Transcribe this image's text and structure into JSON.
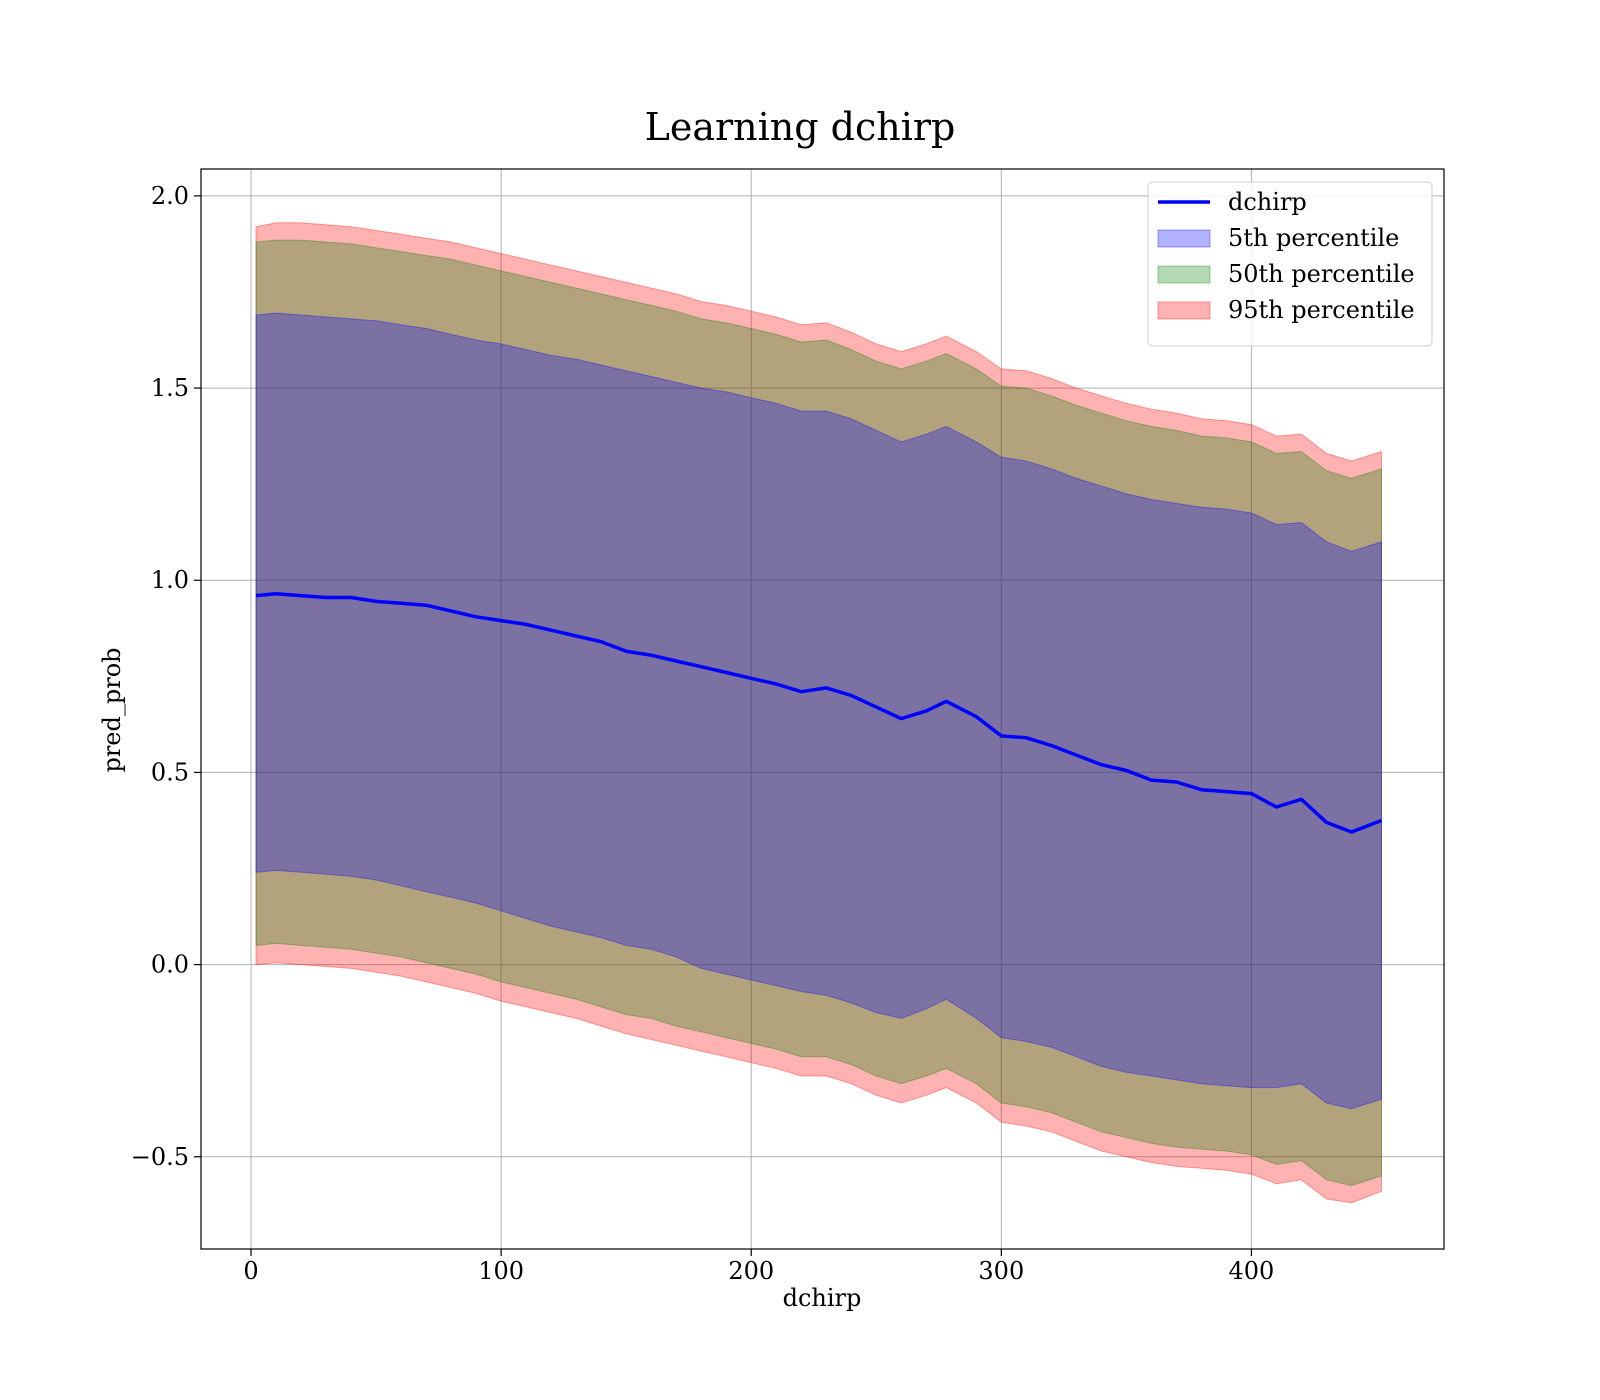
{
  "chart_data": {
    "type": "line",
    "title": "Learning dchirp",
    "xlabel": "dchirp",
    "ylabel": "pred_prob",
    "xlim": [
      -20,
      477
    ],
    "ylim": [
      -0.74,
      2.07
    ],
    "xticks": [
      0,
      100,
      200,
      300,
      400
    ],
    "xtick_labels": [
      "0",
      "100",
      "200",
      "300",
      "400"
    ],
    "yticks": [
      -0.5,
      0.0,
      0.5,
      1.0,
      1.5,
      2.0
    ],
    "ytick_labels": [
      "−0.5",
      "0.0",
      "0.5",
      "1.0",
      "1.5",
      "2.0"
    ],
    "grid": true,
    "legend_position": "top-right",
    "x": [
      2,
      10,
      20,
      30,
      40,
      50,
      60,
      70,
      80,
      90,
      100,
      110,
      120,
      130,
      140,
      150,
      160,
      170,
      180,
      190,
      200,
      210,
      220,
      230,
      240,
      250,
      260,
      270,
      278,
      290,
      300,
      310,
      320,
      330,
      340,
      350,
      360,
      370,
      380,
      390,
      400,
      410,
      420,
      430,
      440,
      452
    ],
    "series": [
      {
        "name": "dchirp",
        "kind": "line",
        "color": "#0000ff",
        "values": [
          0.96,
          0.965,
          0.96,
          0.955,
          0.955,
          0.945,
          0.94,
          0.935,
          0.92,
          0.905,
          0.895,
          0.885,
          0.87,
          0.855,
          0.84,
          0.815,
          0.805,
          0.79,
          0.775,
          0.76,
          0.745,
          0.73,
          0.71,
          0.72,
          0.7,
          0.67,
          0.64,
          0.66,
          0.685,
          0.645,
          0.595,
          0.59,
          0.57,
          0.545,
          0.52,
          0.505,
          0.48,
          0.475,
          0.455,
          0.45,
          0.445,
          0.41,
          0.43,
          0.37,
          0.345,
          0.375
        ]
      },
      {
        "name": "5th percentile",
        "kind": "band",
        "color": "#0000ff",
        "lower": [
          0.24,
          0.245,
          0.24,
          0.235,
          0.23,
          0.22,
          0.205,
          0.19,
          0.175,
          0.16,
          0.14,
          0.12,
          0.1,
          0.085,
          0.07,
          0.05,
          0.04,
          0.02,
          -0.01,
          -0.025,
          -0.04,
          -0.055,
          -0.07,
          -0.08,
          -0.1,
          -0.125,
          -0.14,
          -0.115,
          -0.09,
          -0.14,
          -0.19,
          -0.2,
          -0.215,
          -0.24,
          -0.265,
          -0.28,
          -0.29,
          -0.3,
          -0.31,
          -0.315,
          -0.32,
          -0.32,
          -0.31,
          -0.36,
          -0.375,
          -0.35
        ],
        "upper": [
          1.69,
          1.695,
          1.69,
          1.685,
          1.68,
          1.675,
          1.665,
          1.655,
          1.64,
          1.625,
          1.615,
          1.6,
          1.585,
          1.575,
          1.56,
          1.545,
          1.53,
          1.515,
          1.5,
          1.49,
          1.475,
          1.46,
          1.44,
          1.44,
          1.42,
          1.39,
          1.36,
          1.38,
          1.4,
          1.36,
          1.32,
          1.31,
          1.29,
          1.265,
          1.245,
          1.225,
          1.21,
          1.2,
          1.19,
          1.185,
          1.175,
          1.145,
          1.15,
          1.1,
          1.075,
          1.1
        ]
      },
      {
        "name": "50th percentile",
        "kind": "band",
        "color": "#008000",
        "lower": [
          0.05,
          0.055,
          0.05,
          0.045,
          0.04,
          0.03,
          0.02,
          0.005,
          -0.01,
          -0.025,
          -0.045,
          -0.06,
          -0.075,
          -0.09,
          -0.11,
          -0.13,
          -0.14,
          -0.16,
          -0.175,
          -0.19,
          -0.205,
          -0.22,
          -0.24,
          -0.24,
          -0.26,
          -0.29,
          -0.31,
          -0.29,
          -0.27,
          -0.31,
          -0.36,
          -0.37,
          -0.385,
          -0.41,
          -0.435,
          -0.45,
          -0.465,
          -0.475,
          -0.48,
          -0.485,
          -0.495,
          -0.52,
          -0.51,
          -0.56,
          -0.575,
          -0.55
        ],
        "upper": [
          1.88,
          1.885,
          1.885,
          1.88,
          1.875,
          1.865,
          1.855,
          1.845,
          1.835,
          1.82,
          1.805,
          1.79,
          1.775,
          1.76,
          1.745,
          1.73,
          1.715,
          1.7,
          1.68,
          1.67,
          1.655,
          1.64,
          1.62,
          1.625,
          1.6,
          1.57,
          1.55,
          1.57,
          1.59,
          1.55,
          1.505,
          1.5,
          1.48,
          1.455,
          1.435,
          1.415,
          1.4,
          1.39,
          1.375,
          1.37,
          1.36,
          1.33,
          1.335,
          1.285,
          1.265,
          1.29
        ]
      },
      {
        "name": "95th percentile",
        "kind": "band",
        "color": "#ff0000",
        "lower": [
          0.0,
          0.005,
          0.0,
          -0.005,
          -0.01,
          -0.02,
          -0.03,
          -0.045,
          -0.06,
          -0.075,
          -0.095,
          -0.11,
          -0.125,
          -0.14,
          -0.16,
          -0.18,
          -0.195,
          -0.21,
          -0.225,
          -0.24,
          -0.255,
          -0.27,
          -0.29,
          -0.29,
          -0.31,
          -0.34,
          -0.36,
          -0.34,
          -0.32,
          -0.36,
          -0.41,
          -0.42,
          -0.435,
          -0.46,
          -0.485,
          -0.5,
          -0.515,
          -0.525,
          -0.53,
          -0.535,
          -0.545,
          -0.57,
          -0.56,
          -0.61,
          -0.62,
          -0.59
        ],
        "upper": [
          1.92,
          1.93,
          1.93,
          1.925,
          1.92,
          1.91,
          1.9,
          1.89,
          1.88,
          1.865,
          1.85,
          1.835,
          1.82,
          1.805,
          1.79,
          1.775,
          1.76,
          1.745,
          1.725,
          1.715,
          1.7,
          1.685,
          1.665,
          1.67,
          1.645,
          1.615,
          1.595,
          1.615,
          1.635,
          1.595,
          1.55,
          1.545,
          1.525,
          1.5,
          1.48,
          1.46,
          1.445,
          1.435,
          1.42,
          1.415,
          1.405,
          1.375,
          1.38,
          1.33,
          1.31,
          1.335
        ]
      }
    ]
  }
}
